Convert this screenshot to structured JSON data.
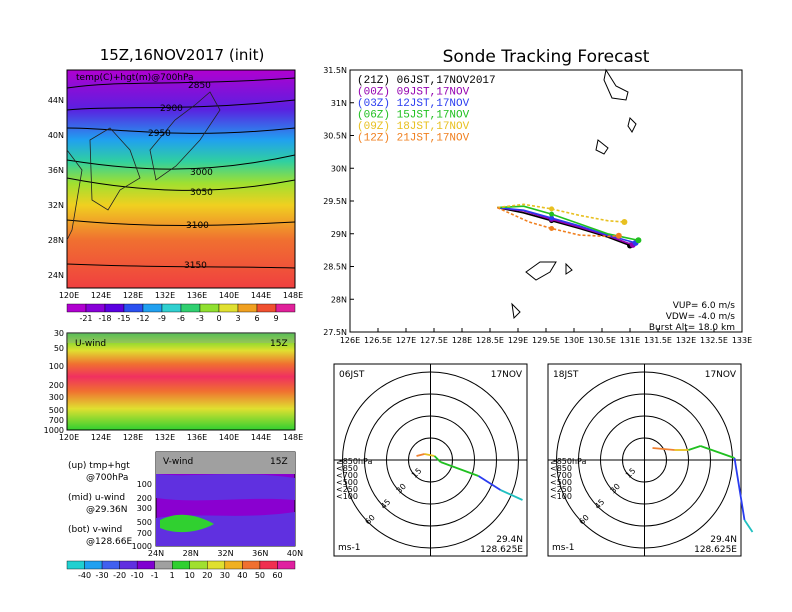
{
  "left": {
    "title": "15Z,16NOV2017 (init)",
    "map_label": "temp(C)+hgt(m)@700hPa",
    "lat_ticks": [
      "44N",
      "40N",
      "36N",
      "32N",
      "28N",
      "24N"
    ],
    "lon_ticks": [
      "120E",
      "124E",
      "128E",
      "132E",
      "136E",
      "140E",
      "144E",
      "148E"
    ],
    "contours": [
      "2850",
      "2900",
      "2950",
      "3000",
      "3050",
      "3100",
      "3150"
    ],
    "temp_cbar": [
      "-21",
      "-18",
      "-15",
      "-12",
      "-9",
      "-6",
      "-3",
      "0",
      "3",
      "6",
      "9"
    ],
    "temp_cbar_colors": [
      "#b000d0",
      "#8800d8",
      "#5a00e0",
      "#2a50f0",
      "#20a0f0",
      "#30d0d0",
      "#30d070",
      "#90e030",
      "#e0e030",
      "#f0a020",
      "#f05030",
      "#e0209a"
    ],
    "u_wind": {
      "label": "U-wind",
      "time": "15Z",
      "p_ticks": [
        "30",
        "50",
        "100",
        "200",
        "300",
        "500",
        "700",
        "1000"
      ],
      "lon_ticks": [
        "120E",
        "124E",
        "128E",
        "132E",
        "136E",
        "140E",
        "144E",
        "148E"
      ]
    },
    "v_wind": {
      "label": "V-wind",
      "time": "15Z",
      "p_ticks": [
        "100",
        "200",
        "300",
        "500",
        "700",
        "1000"
      ],
      "lat_ticks": [
        "24N",
        "28N",
        "32N",
        "36N",
        "40N"
      ]
    },
    "notes": {
      "up": "(up) tmp+hgt",
      "up2": "@700hPa",
      "mid": "(mid) u-wind",
      "mid2": "@29.36N",
      "bot": "(bot) v-wind",
      "bot2": "@128.66E"
    },
    "wind_cbar": [
      "-40",
      "-30",
      "-20",
      "-10",
      "-1",
      "1",
      "10",
      "20",
      "30",
      "40",
      "50",
      "60"
    ],
    "wind_cbar_colors": [
      "#20d0d0",
      "#20a0f0",
      "#4060f0",
      "#6030e0",
      "#8000d0",
      "#a0a0a0",
      "#30d030",
      "#a0e030",
      "#e0e030",
      "#f0b020",
      "#f07030",
      "#f03050",
      "#e020a0"
    ]
  },
  "right": {
    "title": "Sonde Tracking Forecast",
    "legend": [
      {
        "code": "(21Z)",
        "text": "06JST,17NOV2017",
        "color": "#000000"
      },
      {
        "code": "(00Z)",
        "text": "09JST,17NOV",
        "color": "#9400b0"
      },
      {
        "code": "(03Z)",
        "text": "12JST,17NOV",
        "color": "#2a3cf0"
      },
      {
        "code": "(06Z)",
        "text": "15JST,17NOV",
        "color": "#20c020"
      },
      {
        "code": "(09Z)",
        "text": "18JST,17NOV",
        "color": "#e8c020"
      },
      {
        "code": "(12Z)",
        "text": "21JST,17NOV",
        "color": "#f08020"
      }
    ],
    "stats": {
      "vup": "VUP=  6.0 m/s",
      "vdw": "VDW= -4.0 m/s",
      "burst": "Burst Alt= 18.0 km"
    },
    "polar": [
      {
        "time": "06JST",
        "date": "17NOV",
        "lat": "29.4N",
        "lon": "128.625E",
        "unit": "ms-1"
      },
      {
        "time": "18JST",
        "date": "17NOV",
        "lat": "29.4N",
        "lon": "128.625E",
        "unit": "ms-1"
      }
    ],
    "polar_rings": [
      "15",
      "30",
      "45",
      "60"
    ],
    "polar_legend": [
      {
        "text": "≥850hPa",
        "color": "#f03030"
      },
      {
        "text": "<850",
        "color": "#f08030"
      },
      {
        "text": "<700",
        "color": "#e8c020"
      },
      {
        "text": "<500",
        "color": "#20c020"
      },
      {
        "text": "<250",
        "color": "#2a3cf0"
      },
      {
        "text": "<100",
        "color": "#20c0c0"
      }
    ]
  },
  "chart_data": {
    "type": "line",
    "title": "Sonde Tracking Forecast",
    "xlim": [
      126,
      133
    ],
    "ylim": [
      27.5,
      31.5
    ],
    "x_ticks": [
      "126E",
      "126.5E",
      "127E",
      "127.5E",
      "128E",
      "128.5E",
      "129E",
      "129.5E",
      "130E",
      "130.5E",
      "131E",
      "131.5E",
      "132E",
      "132.5E",
      "133E"
    ],
    "y_ticks": [
      "27.5N",
      "28N",
      "28.5N",
      "29N",
      "29.5N",
      "30N",
      "30.5N",
      "31N",
      "31.5N"
    ],
    "series": [
      {
        "name": "(21Z) 06JST,17NOV2017",
        "color": "#000000",
        "x": [
          128.63,
          129.1,
          129.6,
          130.1,
          130.6,
          131.0
        ],
        "y": [
          29.4,
          29.32,
          29.2,
          29.08,
          28.95,
          28.82
        ]
      },
      {
        "name": "(00Z) 09JST,17NOV",
        "color": "#9400b0",
        "x": [
          128.63,
          129.1,
          129.6,
          130.1,
          130.6,
          131.05
        ],
        "y": [
          29.4,
          29.35,
          29.22,
          29.1,
          28.97,
          28.83
        ]
      },
      {
        "name": "(03Z) 12JST,17NOV",
        "color": "#2a3cf0",
        "x": [
          128.63,
          129.1,
          129.6,
          130.1,
          130.6,
          131.1
        ],
        "y": [
          29.4,
          29.36,
          29.24,
          29.12,
          28.98,
          28.86
        ]
      },
      {
        "name": "(06Z) 15JST,17NOV",
        "color": "#20c020",
        "x": [
          128.63,
          129.1,
          129.6,
          130.1,
          130.6,
          131.15
        ],
        "y": [
          29.4,
          29.42,
          29.3,
          29.15,
          29.0,
          28.9
        ]
      },
      {
        "name": "(09Z) 18JST,17NOV",
        "color": "#e8c020",
        "x": [
          128.63,
          129.1,
          129.6,
          130.1,
          130.6,
          130.9
        ],
        "y": [
          29.4,
          29.45,
          29.38,
          29.28,
          29.2,
          29.18
        ]
      },
      {
        "name": "(12Z) 21JST,17NOV",
        "color": "#f08020",
        "x": [
          128.63,
          129.2,
          129.6,
          130.1,
          130.6,
          130.8
        ],
        "y": [
          29.4,
          29.18,
          29.08,
          28.98,
          28.96,
          28.97
        ]
      }
    ]
  }
}
